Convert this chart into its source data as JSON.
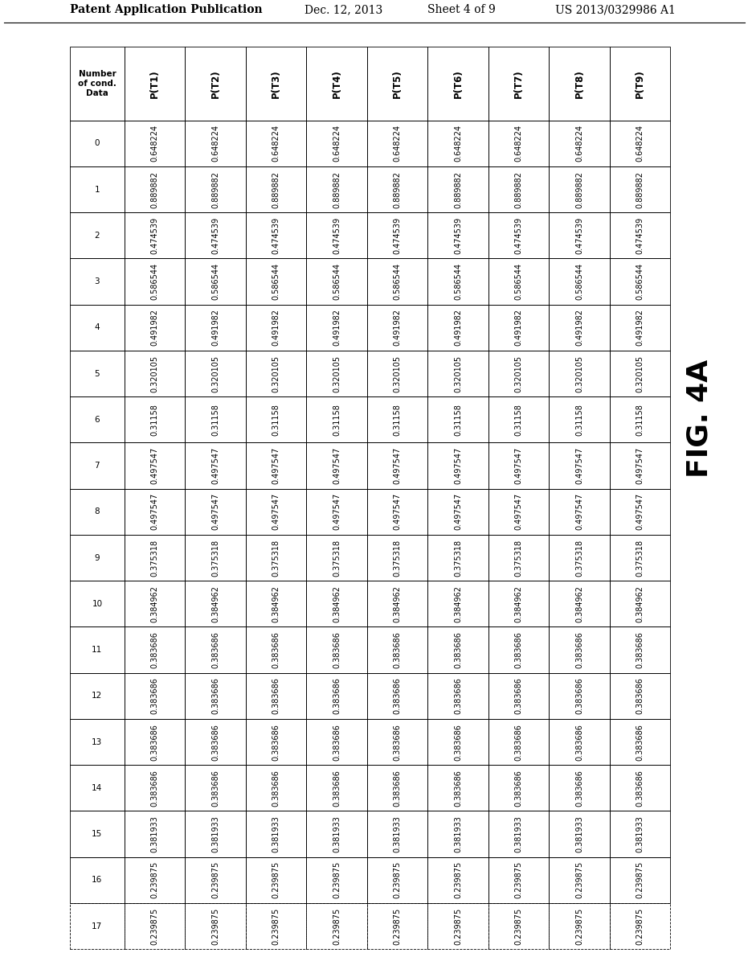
{
  "header_row": [
    "Number\nof cond.\nData",
    "P(T1)",
    "P(T2)",
    "P(T3)",
    "P(T4)",
    "P(T5)",
    "P(T6)",
    "P(T7)",
    "P(T8)",
    "P(T9)"
  ],
  "row_labels": [
    "0",
    "1",
    "2",
    "3",
    "4",
    "5",
    "6",
    "7",
    "8",
    "9",
    "10",
    "11",
    "12",
    "13",
    "14",
    "15",
    "16",
    "17"
  ],
  "data_values": [
    [
      "0.648224",
      "0.648224",
      "0.648224",
      "0.648224",
      "0.648224",
      "0.648224",
      "0.648224",
      "0.648224",
      "0.648224"
    ],
    [
      "0.889882",
      "0.889882",
      "0.889882",
      "0.889882",
      "0.889882",
      "0.889882",
      "0.889882",
      "0.889882",
      "0.889882"
    ],
    [
      "0.474539",
      "0.474539",
      "0.474539",
      "0.474539",
      "0.474539",
      "0.474539",
      "0.474539",
      "0.474539",
      "0.474539"
    ],
    [
      "0.586544",
      "0.586544",
      "0.586544",
      "0.586544",
      "0.586544",
      "0.586544",
      "0.586544",
      "0.586544",
      "0.586544"
    ],
    [
      "0.491982",
      "0.491982",
      "0.491982",
      "0.491982",
      "0.491982",
      "0.491982",
      "0.491982",
      "0.491982",
      "0.491982"
    ],
    [
      "0.320105",
      "0.320105",
      "0.320105",
      "0.320105",
      "0.320105",
      "0.320105",
      "0.320105",
      "0.320105",
      "0.320105"
    ],
    [
      "0.31158",
      "0.31158",
      "0.31158",
      "0.31158",
      "0.31158",
      "0.31158",
      "0.31158",
      "0.31158",
      "0.31158"
    ],
    [
      "0.497547",
      "0.497547",
      "0.497547",
      "0.497547",
      "0.497547",
      "0.497547",
      "0.497547",
      "0.497547",
      "0.497547"
    ],
    [
      "0.497547",
      "0.497547",
      "0.497547",
      "0.497547",
      "0.497547",
      "0.497547",
      "0.497547",
      "0.497547",
      "0.497547"
    ],
    [
      "0.375318",
      "0.375318",
      "0.375318",
      "0.375318",
      "0.375318",
      "0.375318",
      "0.375318",
      "0.375318",
      "0.375318"
    ],
    [
      "0.384962",
      "0.384962",
      "0.384962",
      "0.384962",
      "0.384962",
      "0.384962",
      "0.384962",
      "0.384962",
      "0.384962"
    ],
    [
      "0.383686",
      "0.383686",
      "0.383686",
      "0.383686",
      "0.383686",
      "0.383686",
      "0.383686",
      "0.383686",
      "0.383686"
    ],
    [
      "0.383686",
      "0.383686",
      "0.383686",
      "0.383686",
      "0.383686",
      "0.383686",
      "0.383686",
      "0.383686",
      "0.383686"
    ],
    [
      "0.383686",
      "0.383686",
      "0.383686",
      "0.383686",
      "0.383686",
      "0.383686",
      "0.383686",
      "0.383686",
      "0.383686"
    ],
    [
      "0.383686",
      "0.383686",
      "0.383686",
      "0.383686",
      "0.383686",
      "0.383686",
      "0.383686",
      "0.383686",
      "0.383686"
    ],
    [
      "0.381933",
      "0.381933",
      "0.381933",
      "0.381933",
      "0.381933",
      "0.381933",
      "0.381933",
      "0.381933",
      "0.381933"
    ],
    [
      "0.239875",
      "0.239875",
      "0.239875",
      "0.239875",
      "0.239875",
      "0.239875",
      "0.239875",
      "0.239875",
      "0.239875"
    ],
    [
      "0.239875",
      "0.239875",
      "0.239875",
      "0.239875",
      "0.239875",
      "0.239875",
      "0.239875",
      "0.239875",
      "0.239875"
    ]
  ],
  "header_text": "Patent Application Publication",
  "date_text": "Dec. 12, 2013",
  "sheet_text": "Sheet 4 of 9",
  "patent_text": "US 2013/0329986 A1",
  "fig_label": "FIG. 4A",
  "bg_color": "#ffffff",
  "text_color": "#000000",
  "cell_font_size": 7.0,
  "header_col_font_size": 7.5,
  "header_row_font_size": 8.5
}
